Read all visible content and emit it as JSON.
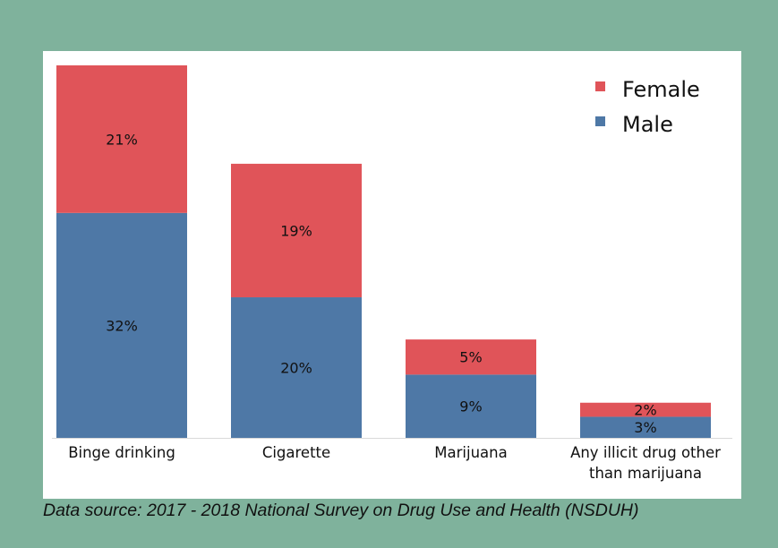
{
  "chart_data": {
    "type": "bar",
    "stacked": true,
    "categories": [
      [
        "Binge drinking"
      ],
      [
        "Cigarette"
      ],
      [
        "Marijuana"
      ],
      [
        "Any illicit drug other",
        "than marijuana"
      ]
    ],
    "series": [
      {
        "name": "Male",
        "values": [
          32,
          20,
          9,
          3
        ],
        "labels": [
          "32%",
          "20%",
          "9%",
          "3%"
        ],
        "color": "#4e78a6"
      },
      {
        "name": "Female",
        "values": [
          21,
          19,
          5,
          2
        ],
        "labels": [
          "21%",
          "19%",
          "5%",
          "2%"
        ],
        "color": "#e05459"
      }
    ],
    "legend": {
      "position": "top-right",
      "entries": [
        {
          "label": "Female",
          "color": "#e05459"
        },
        {
          "label": "Male",
          "color": "#4e78a6"
        }
      ]
    },
    "ylim": [
      0,
      53
    ],
    "title": "",
    "xlabel": "",
    "ylabel": ""
  },
  "source_note": "Data source: 2017 - 2018 National Survey on Drug Use and Health (NSDUH)"
}
